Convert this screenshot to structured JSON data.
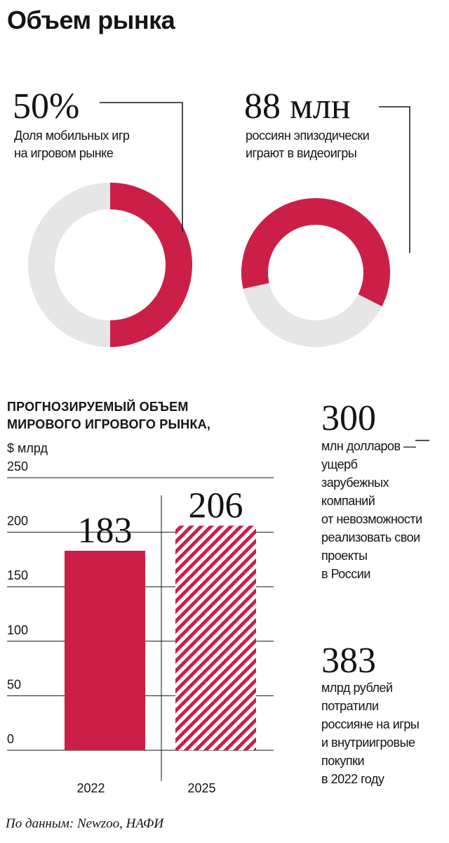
{
  "title": "Объем рынка",
  "stat_mobile": {
    "value": "50%",
    "label_line1": "Доля мобильных игр",
    "label_line2": "на игровом рынке",
    "share": 0.5
  },
  "stat_players": {
    "value": "88 млн",
    "label_line1": "россиян эпизодически",
    "label_line2": "играют в видеоигры",
    "share": 0.61
  },
  "colors": {
    "accent": "#cc1f48",
    "ring_bg": "#e6e6e6",
    "text": "#141414",
    "grid": "#141414"
  },
  "chart_data": {
    "type": "bar",
    "title_line1": "ПРОГНОЗИРУЕМЫЙ ОБЪЕМ",
    "title_line2": "МИРОВОГО ИГРОВОГО РЫНКА,",
    "unit": "$ млрд",
    "categories": [
      "2022",
      "2025"
    ],
    "values": [
      183,
      206
    ],
    "value_labels": [
      "183",
      "206"
    ],
    "styles": [
      "solid",
      "hatched"
    ],
    "ylim": [
      0,
      250
    ],
    "yticks": [
      "0",
      "50",
      "100",
      "150",
      "200",
      "250"
    ],
    "grid": true
  },
  "side_stat_damage": {
    "value": "300",
    "lines": [
      "млн долларов —",
      "ущерб",
      "зарубежных",
      "компаний",
      "от невозможности",
      "реализовать свои",
      "проекты",
      "в России"
    ]
  },
  "side_stat_spend": {
    "value": "383",
    "lines": [
      "млрд рублей",
      "потратили",
      "россияне на игры",
      "и внутриигровые",
      "покупки",
      "в 2022 году"
    ]
  },
  "source": "По данным: Newzoo, НАФИ"
}
